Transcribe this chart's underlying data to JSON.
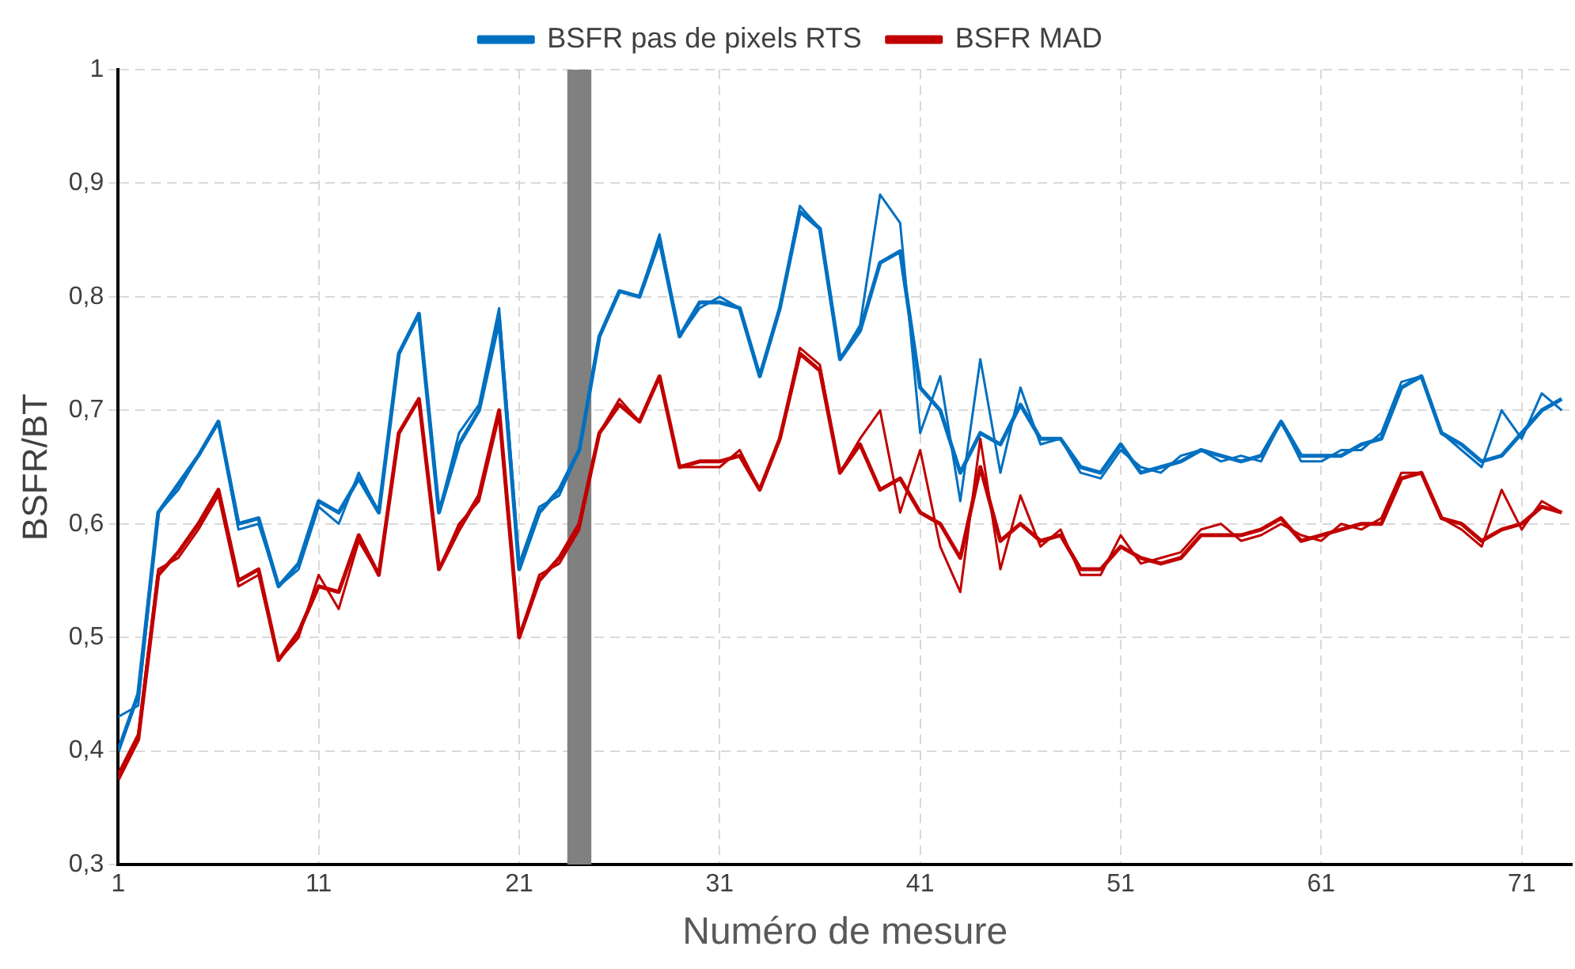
{
  "chart_data": {
    "type": "line",
    "xlabel": "Numéro de mesure",
    "ylabel": "BSFR/BT",
    "x": [
      1,
      2,
      3,
      4,
      5,
      6,
      7,
      8,
      9,
      10,
      11,
      12,
      13,
      14,
      15,
      16,
      17,
      18,
      19,
      20,
      21,
      22,
      23,
      24,
      25,
      26,
      27,
      28,
      29,
      30,
      31,
      32,
      33,
      34,
      35,
      36,
      37,
      38,
      39,
      40,
      41,
      42,
      43,
      44,
      45,
      46,
      47,
      48,
      49,
      50,
      51,
      52,
      53,
      54,
      55,
      56,
      57,
      58,
      59,
      60,
      61,
      62,
      63,
      64,
      65,
      66,
      67,
      68,
      69,
      70,
      71,
      72,
      73
    ],
    "series": [
      {
        "name": "BSFR pas de pixels RTS",
        "color": "#0070c0",
        "values": [
          0.4,
          0.45,
          0.61,
          0.635,
          0.66,
          0.69,
          0.6,
          0.605,
          0.545,
          0.565,
          0.62,
          0.61,
          0.64,
          0.61,
          0.75,
          0.785,
          0.61,
          0.67,
          0.7,
          0.78,
          0.56,
          0.61,
          0.63,
          0.665,
          0.765,
          0.805,
          0.8,
          0.85,
          0.765,
          0.795,
          0.795,
          0.79,
          0.73,
          0.79,
          0.875,
          0.86,
          0.745,
          0.77,
          0.83,
          0.84,
          0.72,
          0.7,
          0.645,
          0.68,
          0.67,
          0.705,
          0.675,
          0.675,
          0.65,
          0.645,
          0.67,
          0.645,
          0.65,
          0.655,
          0.665,
          0.66,
          0.655,
          0.66,
          0.69,
          0.66,
          0.66,
          0.66,
          0.67,
          0.675,
          0.72,
          0.73,
          0.68,
          0.67,
          0.655,
          0.66,
          0.68,
          0.7,
          0.71
        ]
      },
      {
        "color": "#0070c0",
        "values": [
          0.43,
          0.44,
          0.61,
          0.63,
          0.66,
          0.69,
          0.595,
          0.6,
          0.545,
          0.56,
          0.615,
          0.6,
          0.645,
          0.61,
          0.75,
          0.785,
          0.61,
          0.68,
          0.705,
          0.79,
          0.565,
          0.615,
          0.625,
          0.665,
          0.765,
          0.805,
          0.8,
          0.855,
          0.765,
          0.79,
          0.8,
          0.79,
          0.73,
          0.79,
          0.88,
          0.86,
          0.745,
          0.775,
          0.89,
          0.865,
          0.68,
          0.73,
          0.62,
          0.745,
          0.645,
          0.72,
          0.67,
          0.675,
          0.645,
          0.64,
          0.665,
          0.65,
          0.645,
          0.66,
          0.665,
          0.655,
          0.66,
          0.655,
          0.69,
          0.655,
          0.655,
          0.665,
          0.665,
          0.68,
          0.725,
          0.73,
          0.68,
          0.665,
          0.65,
          0.7,
          0.675,
          0.715,
          0.7
        ]
      },
      {
        "name": "BSFR MAD",
        "color": "#c00000",
        "values": [
          0.375,
          0.41,
          0.555,
          0.575,
          0.6,
          0.63,
          0.55,
          0.56,
          0.48,
          0.505,
          0.545,
          0.54,
          0.59,
          0.555,
          0.68,
          0.71,
          0.56,
          0.595,
          0.625,
          0.7,
          0.5,
          0.55,
          0.57,
          0.6,
          0.68,
          0.705,
          0.69,
          0.73,
          0.65,
          0.655,
          0.655,
          0.66,
          0.63,
          0.675,
          0.75,
          0.735,
          0.645,
          0.67,
          0.63,
          0.64,
          0.61,
          0.6,
          0.57,
          0.65,
          0.585,
          0.6,
          0.585,
          0.59,
          0.56,
          0.56,
          0.58,
          0.57,
          0.565,
          0.57,
          0.59,
          0.59,
          0.59,
          0.595,
          0.605,
          0.585,
          0.59,
          0.595,
          0.6,
          0.6,
          0.64,
          0.645,
          0.605,
          0.6,
          0.585,
          0.595,
          0.6,
          0.615,
          0.61
        ]
      },
      {
        "color": "#c00000",
        "values": [
          0.38,
          0.415,
          0.56,
          0.57,
          0.595,
          0.625,
          0.545,
          0.555,
          0.48,
          0.5,
          0.555,
          0.525,
          0.585,
          0.555,
          0.68,
          0.71,
          0.56,
          0.6,
          0.62,
          0.695,
          0.5,
          0.555,
          0.565,
          0.595,
          0.68,
          0.71,
          0.69,
          0.73,
          0.65,
          0.65,
          0.65,
          0.665,
          0.63,
          0.675,
          0.755,
          0.74,
          0.645,
          0.675,
          0.7,
          0.61,
          0.665,
          0.58,
          0.54,
          0.675,
          0.56,
          0.625,
          0.58,
          0.595,
          0.555,
          0.555,
          0.59,
          0.565,
          0.57,
          0.575,
          0.595,
          0.6,
          0.585,
          0.59,
          0.6,
          0.59,
          0.585,
          0.6,
          0.595,
          0.605,
          0.645,
          0.645,
          0.605,
          0.595,
          0.58,
          0.63,
          0.595,
          0.62,
          0.61
        ]
      }
    ],
    "xlim": [
      1,
      73.5
    ],
    "xticks": [
      1,
      11,
      21,
      31,
      41,
      51,
      61,
      71
    ],
    "ylim": [
      0.3,
      1
    ],
    "yticks": [
      {
        "value": 0.3,
        "label": "0,3"
      },
      {
        "value": 0.4,
        "label": "0,4"
      },
      {
        "value": 0.5,
        "label": "0,5"
      },
      {
        "value": 0.6,
        "label": "0,6"
      },
      {
        "value": 0.7,
        "label": "0,7"
      },
      {
        "value": 0.8,
        "label": "0,8"
      },
      {
        "value": 0.9,
        "label": "0,9"
      },
      1
    ],
    "bands": [
      {
        "axis": "x",
        "from": 23.4,
        "to": 24.6,
        "color": "#808080"
      }
    ],
    "grid": true,
    "legend": "top",
    "marker": "none",
    "line_style": "solid"
  }
}
